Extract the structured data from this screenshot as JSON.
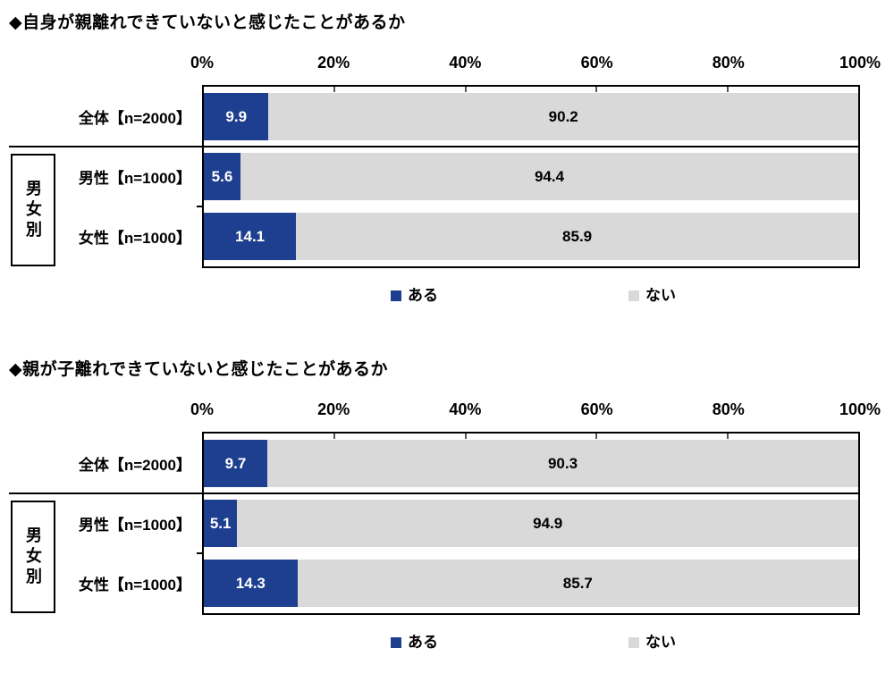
{
  "colors": {
    "yes_fill": "#1e3f8f",
    "no_fill": "#d9d9d9",
    "border": "#000000",
    "yes_value_text": "#ffffff",
    "no_value_text": "#000000"
  },
  "chart_data": [
    {
      "type": "bar",
      "stacked": true,
      "orientation": "horizontal",
      "title": "◆自身が親離れできていないと感じたことがあるか",
      "group_label": "男女別",
      "categories": [
        "全体【n=2000】",
        "男性【n=1000】",
        "女性【n=1000】"
      ],
      "series": [
        {
          "name": "ある",
          "color": "#1e3f8f",
          "values": [
            9.9,
            5.6,
            14.1
          ]
        },
        {
          "name": "ない",
          "color": "#d9d9d9",
          "values": [
            90.2,
            94.4,
            85.9
          ]
        }
      ],
      "x_ticks": [
        "0%",
        "20%",
        "40%",
        "60%",
        "80%",
        "100%"
      ],
      "xlim": [
        0,
        100
      ],
      "grid": false,
      "legend_position": "bottom"
    },
    {
      "type": "bar",
      "stacked": true,
      "orientation": "horizontal",
      "title": "◆親が子離れできていないと感じたことがあるか",
      "group_label": "男女別",
      "categories": [
        "全体【n=2000】",
        "男性【n=1000】",
        "女性【n=1000】"
      ],
      "series": [
        {
          "name": "ある",
          "color": "#1e3f8f",
          "values": [
            9.7,
            5.1,
            14.3
          ]
        },
        {
          "name": "ない",
          "color": "#d9d9d9",
          "values": [
            90.3,
            94.9,
            85.7
          ]
        }
      ],
      "x_ticks": [
        "0%",
        "20%",
        "40%",
        "60%",
        "80%",
        "100%"
      ],
      "xlim": [
        0,
        100
      ],
      "grid": false,
      "legend_position": "bottom"
    }
  ]
}
